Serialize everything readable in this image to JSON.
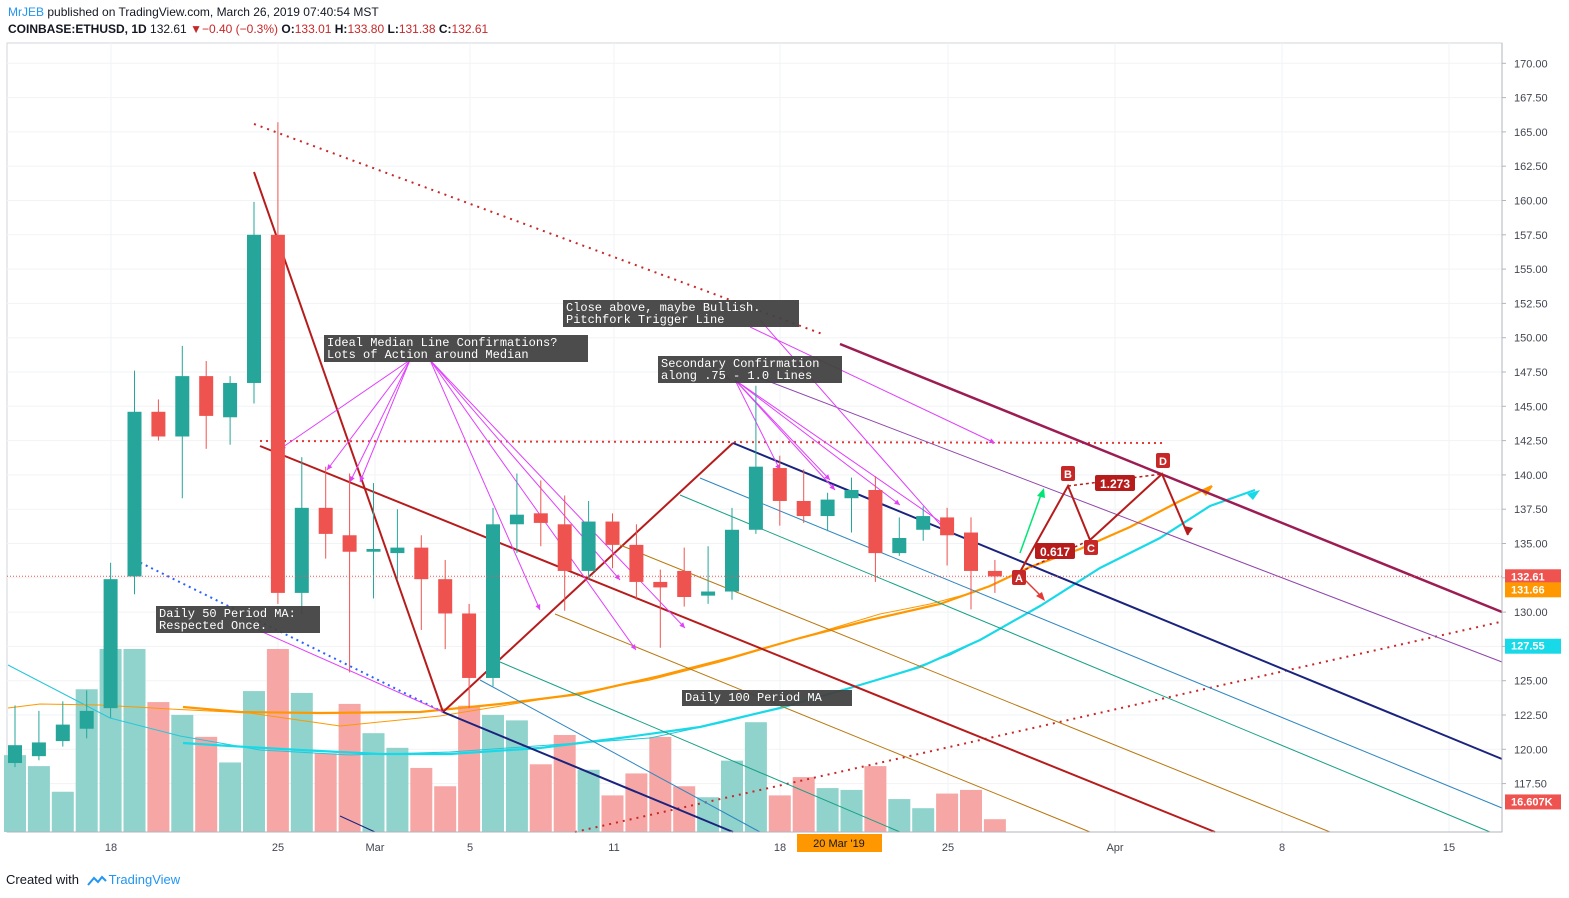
{
  "header": {
    "author": "MrJEB",
    "published": "published on TradingView.com, March 26, 2019 07:40:54 MST",
    "symbol": "COINBASE:ETHUSD, 1D",
    "last": "132.61",
    "change": "−0.40 (−0.3%)",
    "o_label": "O:",
    "o": "133.01",
    "h_label": "H:",
    "h": "133.80",
    "l_label": "L:",
    "l": "131.38",
    "c_label": "C:",
    "c": "132.61"
  },
  "footer": {
    "created": "Created with",
    "brand": "TradingView"
  },
  "colors": {
    "up": "#26a69a",
    "down": "#ef5350",
    "vol_up": "#8fd3cc",
    "vol_down": "#f6a7a5",
    "magenta": "#e040fb",
    "darkred": "#b71c1c",
    "maroon": "#9c1c54",
    "navy": "#1a237e",
    "orange": "#ff9800",
    "cyan": "#18d9e8"
  },
  "chart_data": {
    "type": "candlestick",
    "ylim": [
      115,
      171
    ],
    "y_ticks": [
      "170.00",
      "167.50",
      "165.00",
      "162.50",
      "160.00",
      "157.50",
      "155.00",
      "152.50",
      "150.00",
      "147.50",
      "145.00",
      "142.50",
      "140.00",
      "137.50",
      "135.00",
      "132.50",
      "130.00",
      "127.50",
      "125.00",
      "122.50",
      "120.00",
      "117.50"
    ],
    "x_ticks": [
      "18",
      "25",
      "Mar",
      "5",
      "11",
      "18",
      "25",
      "Apr",
      "8",
      "15"
    ],
    "price_labels": [
      {
        "text": "132.61",
        "color": "#ef5350",
        "price": 132.61
      },
      {
        "text": "131.66",
        "color": "#ff9800",
        "price": 131.66
      },
      {
        "text": "127.55",
        "color": "#18d9e8",
        "price": 127.55
      },
      {
        "text": "16.607K",
        "color": "#ef5350",
        "price": 116.2
      }
    ],
    "date_marker": "20 Mar '19",
    "candles": [
      {
        "o": 119.0,
        "h": 123.2,
        "l": 118.7,
        "c": 120.3,
        "v": 0.42
      },
      {
        "o": 119.5,
        "h": 122.8,
        "l": 119.2,
        "c": 120.5,
        "v": 0.36
      },
      {
        "o": 120.6,
        "h": 123.5,
        "l": 120.2,
        "c": 121.8,
        "v": 0.22
      },
      {
        "o": 121.5,
        "h": 124.3,
        "l": 120.8,
        "c": 122.8,
        "v": 0.78
      },
      {
        "o": 123.0,
        "h": 133.6,
        "l": 122.3,
        "c": 132.4,
        "v": 1.0
      },
      {
        "o": 132.6,
        "h": 147.6,
        "l": 131.3,
        "c": 144.6,
        "v": 1.0
      },
      {
        "o": 144.6,
        "h": 145.5,
        "l": 142.5,
        "c": 142.8,
        "v": 0.71
      },
      {
        "o": 142.8,
        "h": 149.4,
        "l": 138.3,
        "c": 147.2,
        "v": 0.64
      },
      {
        "o": 147.2,
        "h": 148.3,
        "l": 141.9,
        "c": 144.3,
        "v": 0.52
      },
      {
        "o": 144.2,
        "h": 147.2,
        "l": 142.2,
        "c": 146.7,
        "v": 0.38
      },
      {
        "o": 146.7,
        "h": 159.9,
        "l": 145.2,
        "c": 157.5,
        "v": 0.77
      },
      {
        "o": 157.5,
        "h": 165.7,
        "l": 130.6,
        "c": 131.4,
        "v": 1.0
      },
      {
        "o": 131.4,
        "h": 141.3,
        "l": 129.8,
        "c": 137.6,
        "v": 0.76
      },
      {
        "o": 137.6,
        "h": 140.6,
        "l": 133.9,
        "c": 135.7,
        "v": 0.43
      },
      {
        "o": 135.6,
        "h": 140.1,
        "l": 125.6,
        "c": 134.4,
        "v": 0.7
      },
      {
        "o": 134.4,
        "h": 139.4,
        "l": 131.0,
        "c": 134.6,
        "v": 0.54
      },
      {
        "o": 134.3,
        "h": 137.5,
        "l": 132.4,
        "c": 134.7,
        "v": 0.46
      },
      {
        "o": 134.7,
        "h": 135.6,
        "l": 128.7,
        "c": 132.4,
        "v": 0.35
      },
      {
        "o": 132.4,
        "h": 133.8,
        "l": 127.3,
        "c": 129.9,
        "v": 0.25
      },
      {
        "o": 129.9,
        "h": 130.6,
        "l": 123.0,
        "c": 125.2,
        "v": 0.69
      },
      {
        "o": 125.2,
        "h": 137.6,
        "l": 124.6,
        "c": 136.4,
        "v": 0.64
      },
      {
        "o": 136.4,
        "h": 140.1,
        "l": 134.3,
        "c": 137.1,
        "v": 0.61
      },
      {
        "o": 137.2,
        "h": 139.6,
        "l": 134.8,
        "c": 136.5,
        "v": 0.37
      },
      {
        "o": 136.4,
        "h": 138.5,
        "l": 130.1,
        "c": 133.0,
        "v": 0.53
      },
      {
        "o": 133.0,
        "h": 138.1,
        "l": 132.4,
        "c": 136.6,
        "v": 0.34
      },
      {
        "o": 136.6,
        "h": 137.2,
        "l": 133.2,
        "c": 134.9,
        "v": 0.2
      },
      {
        "o": 134.9,
        "h": 136.4,
        "l": 130.9,
        "c": 132.2,
        "v": 0.32
      },
      {
        "o": 132.2,
        "h": 133.1,
        "l": 127.4,
        "c": 131.8,
        "v": 0.52
      },
      {
        "o": 133.0,
        "h": 134.7,
        "l": 130.4,
        "c": 131.1,
        "v": 0.25
      },
      {
        "o": 131.2,
        "h": 134.8,
        "l": 130.6,
        "c": 131.5,
        "v": 0.19
      },
      {
        "o": 131.5,
        "h": 137.6,
        "l": 130.9,
        "c": 136.0,
        "v": 0.39
      },
      {
        "o": 136.0,
        "h": 146.5,
        "l": 135.7,
        "c": 140.6,
        "v": 0.6
      },
      {
        "o": 140.5,
        "h": 141.4,
        "l": 136.3,
        "c": 138.1,
        "v": 0.2
      },
      {
        "o": 138.1,
        "h": 140.4,
        "l": 136.5,
        "c": 137.0,
        "v": 0.3
      },
      {
        "o": 137.0,
        "h": 138.7,
        "l": 135.9,
        "c": 138.2,
        "v": 0.24
      },
      {
        "o": 138.3,
        "h": 139.8,
        "l": 135.8,
        "c": 138.9,
        "v": 0.23
      },
      {
        "o": 138.9,
        "h": 139.9,
        "l": 132.2,
        "c": 134.3,
        "v": 0.36
      },
      {
        "o": 134.3,
        "h": 136.9,
        "l": 134.1,
        "c": 135.4,
        "v": 0.18
      },
      {
        "o": 136.0,
        "h": 137.7,
        "l": 135.2,
        "c": 137.0,
        "v": 0.13
      },
      {
        "o": 136.9,
        "h": 137.6,
        "l": 133.4,
        "c": 135.6,
        "v": 0.21
      },
      {
        "o": 135.8,
        "h": 136.9,
        "l": 130.2,
        "c": 133.0,
        "v": 0.23
      },
      {
        "o": 133.0,
        "h": 133.8,
        "l": 131.4,
        "c": 132.6,
        "v": 0.07
      }
    ],
    "annotations": [
      "Ideal Median Line Confirmations?\nLots of Action around Median",
      "Close above, maybe Bullish.\nPitchfork Trigger Line",
      "Secondary Confirmation\nalong .75 - 1.0 Lines",
      "Daily 50 Period MA:\nRespected Once.",
      "Daily 100 Period MA"
    ],
    "pattern_labels": [
      "A",
      "B",
      "C",
      "D"
    ],
    "ratios": [
      "0.617",
      "1.273"
    ]
  }
}
